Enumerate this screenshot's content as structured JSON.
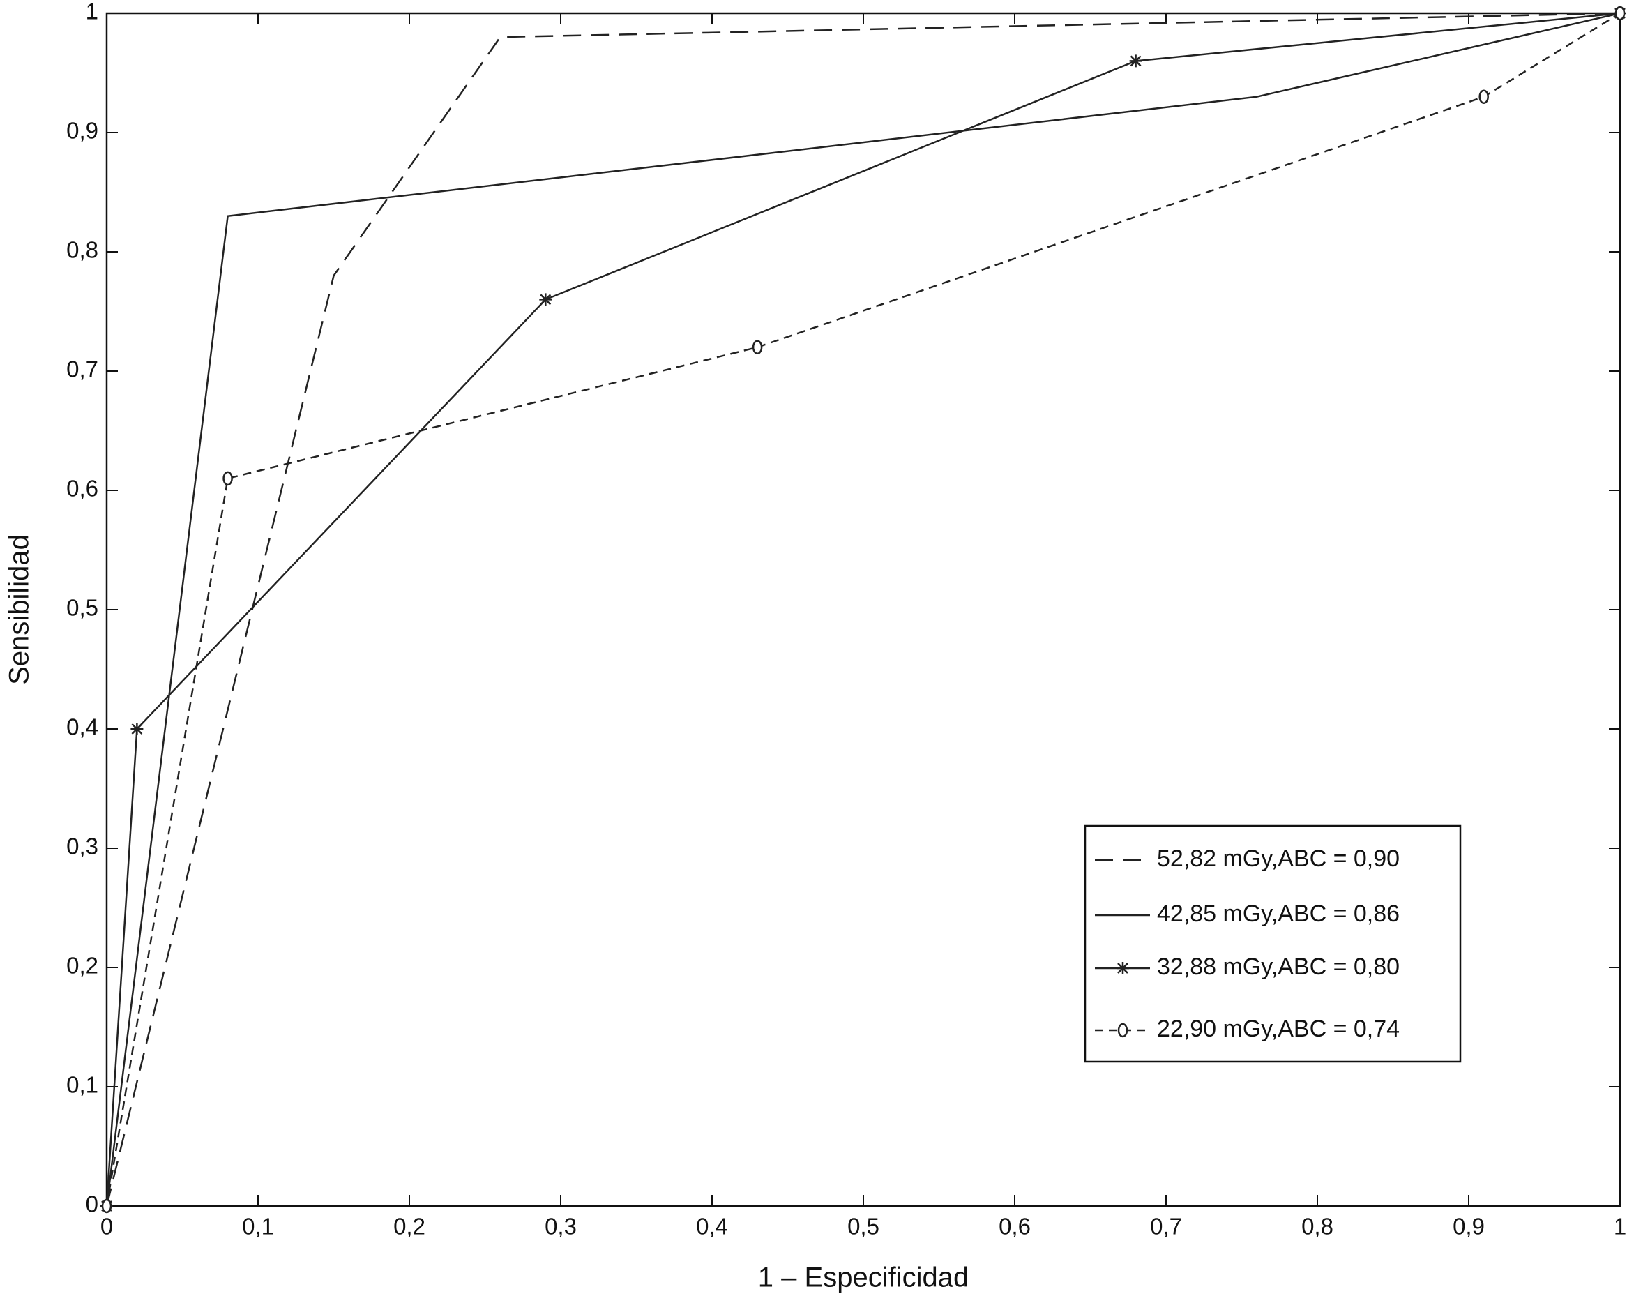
{
  "chart_data": {
    "type": "line",
    "x_label": "1 – Especificidad",
    "y_label": "Sensibilidad",
    "xlim": [
      0,
      1
    ],
    "ylim": [
      0,
      1
    ],
    "xticks": [
      0,
      {
        "value": 0.1,
        "label": "0,1"
      },
      {
        "value": 0.2,
        "label": "0,2"
      },
      {
        "value": 0.3,
        "label": "0,3"
      },
      {
        "value": 0.4,
        "label": "0,4"
      },
      {
        "value": 0.5,
        "label": "0,5"
      },
      {
        "value": 0.6,
        "label": "0,6"
      },
      {
        "value": 0.7,
        "label": "0,7"
      },
      {
        "value": 0.8,
        "label": "0,8"
      },
      {
        "value": 0.9,
        "label": "0,9"
      },
      1
    ],
    "yticks": [
      0,
      {
        "value": 0.1,
        "label": "0,1"
      },
      {
        "value": 0.2,
        "label": "0,2"
      },
      {
        "value": 0.3,
        "label": "0,3"
      },
      {
        "value": 0.4,
        "label": "0,4"
      },
      {
        "value": 0.5,
        "label": "0,5"
      },
      {
        "value": 0.6,
        "label": "0,6"
      },
      {
        "value": 0.7,
        "label": "0,7"
      },
      {
        "value": 0.8,
        "label": "0,8"
      },
      {
        "value": 0.9,
        "label": "0,9"
      },
      1
    ],
    "grid": false,
    "legend": "lower right",
    "series": [
      {
        "name": "52,82 mGy,ABC = 0,90",
        "color": "#222222",
        "dash": "dashed",
        "marker": "none",
        "x": [
          0,
          0.15,
          0.26,
          1
        ],
        "values": [
          0,
          0.78,
          0.98,
          1
        ]
      },
      {
        "name": "42,85 mGy,ABC = 0,86",
        "color": "#222222",
        "dash": "solid",
        "marker": "none",
        "x": [
          0,
          0.08,
          0.76,
          1
        ],
        "values": [
          0,
          0.83,
          0.93,
          1
        ]
      },
      {
        "name": "32,88 mGy,ABC = 0,80",
        "color": "#222222",
        "dash": "solid",
        "marker": "star",
        "x": [
          0,
          0.02,
          0.29,
          0.68,
          1
        ],
        "values": [
          0,
          0.4,
          0.76,
          0.96,
          1
        ]
      },
      {
        "name": "22,90 mGy,ABC = 0,74",
        "color": "#222222",
        "dash": "dashed",
        "marker": "circle",
        "x": [
          0,
          0.08,
          0.43,
          0.91,
          1
        ],
        "values": [
          0,
          0.61,
          0.72,
          0.93,
          1
        ]
      }
    ]
  }
}
